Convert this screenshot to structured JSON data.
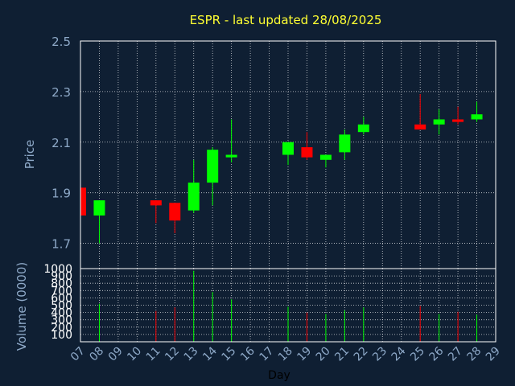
{
  "chart_data": {
    "type": "candlestick",
    "title": "ESPR - last updated 28/08/2025",
    "price_ylabel": "Price",
    "volume_ylabel": "Volume (0000)",
    "xlabel": "Day",
    "price_ylim": [
      1.6,
      2.5
    ],
    "price_yticks": [
      "1.7",
      "1.9",
      "2.1",
      "2.3",
      "2.5"
    ],
    "volume_ylim": [
      0,
      1000
    ],
    "volume_yticks": [
      "100",
      "200",
      "300",
      "400",
      "500",
      "600",
      "700",
      "800",
      "900",
      "1000"
    ],
    "x_ticks": [
      "07",
      "08",
      "09",
      "10",
      "11",
      "12",
      "13",
      "14",
      "15",
      "16",
      "17",
      "18",
      "19",
      "20",
      "21",
      "22",
      "23",
      "24",
      "25",
      "26",
      "27",
      "28",
      "29"
    ],
    "grid": true,
    "colors": {
      "up": "#00ff00",
      "down": "#ff0000",
      "grid": "#ffffff",
      "axis": "#ffffff",
      "background": "#0f1f33",
      "plot_background": "#0f1f33"
    },
    "candles": [
      {
        "day": "07",
        "open": 1.92,
        "high": 1.92,
        "low": 1.81,
        "close": 1.81,
        "volume": 0
      },
      {
        "day": "08",
        "open": 1.81,
        "high": 1.87,
        "low": 1.7,
        "close": 1.87,
        "volume": 520
      },
      {
        "day": "11",
        "open": 1.87,
        "high": 1.87,
        "low": 1.78,
        "close": 1.85,
        "volume": 420
      },
      {
        "day": "12",
        "open": 1.86,
        "high": 1.86,
        "low": 1.74,
        "close": 1.79,
        "volume": 470
      },
      {
        "day": "13",
        "open": 1.83,
        "high": 2.03,
        "low": 1.82,
        "close": 1.94,
        "volume": 970
      },
      {
        "day": "14",
        "open": 1.94,
        "high": 2.08,
        "low": 1.85,
        "close": 2.07,
        "volume": 680
      },
      {
        "day": "15",
        "open": 2.04,
        "high": 2.19,
        "low": 2.02,
        "close": 2.05,
        "volume": 580
      },
      {
        "day": "18",
        "open": 2.05,
        "high": 2.1,
        "low": 2.01,
        "close": 2.1,
        "volume": 480
      },
      {
        "day": "19",
        "open": 2.08,
        "high": 2.14,
        "low": 2.03,
        "close": 2.04,
        "volume": 400
      },
      {
        "day": "20",
        "open": 2.03,
        "high": 2.05,
        "low": 2.0,
        "close": 2.05,
        "volume": 380
      },
      {
        "day": "21",
        "open": 2.06,
        "high": 2.15,
        "low": 2.03,
        "close": 2.13,
        "volume": 430
      },
      {
        "day": "22",
        "open": 2.14,
        "high": 2.2,
        "low": 2.13,
        "close": 2.17,
        "volume": 470
      },
      {
        "day": "25",
        "open": 2.17,
        "high": 2.29,
        "low": 2.15,
        "close": 2.15,
        "volume": 490
      },
      {
        "day": "26",
        "open": 2.17,
        "high": 2.23,
        "low": 2.13,
        "close": 2.19,
        "volume": 380
      },
      {
        "day": "27",
        "open": 2.19,
        "high": 2.24,
        "low": 2.17,
        "close": 2.18,
        "volume": 410
      },
      {
        "day": "28",
        "open": 2.19,
        "high": 2.26,
        "low": 2.18,
        "close": 2.21,
        "volume": 370
      }
    ]
  }
}
